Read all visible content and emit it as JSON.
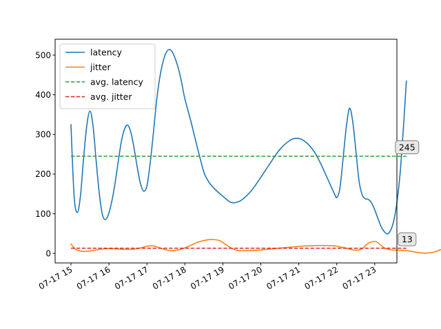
{
  "chart_data": {
    "type": "line",
    "title": "",
    "xlabel": "",
    "ylabel": "",
    "x_ticks": [
      "07-17 15",
      "07-17 16",
      "07-17 17",
      "07-17 18",
      "07-17 19",
      "07-17 20",
      "07-17 21",
      "07-17 22",
      "07-17 23"
    ],
    "y_ticks": [
      0,
      100,
      200,
      300,
      400,
      500
    ],
    "xlim": [
      "07-17 14:35",
      "07-17 23:35"
    ],
    "ylim": [
      -24,
      540
    ],
    "grid": false,
    "legend_position": "top-left",
    "series": [
      {
        "name": "latency",
        "color": "#1f77b4",
        "style": "solid",
        "points": [
          [
            "07-17 15:00",
            325
          ],
          [
            "07-17 15:05",
            145
          ],
          [
            "07-17 15:10",
            103
          ],
          [
            "07-17 15:15",
            145
          ],
          [
            "07-17 15:20",
            240
          ],
          [
            "07-17 15:25",
            322
          ],
          [
            "07-17 15:30",
            359
          ],
          [
            "07-17 15:35",
            320
          ],
          [
            "07-17 15:40",
            230
          ],
          [
            "07-17 15:45",
            148
          ],
          [
            "07-17 15:50",
            96
          ],
          [
            "07-17 15:55",
            86
          ],
          [
            "07-17 16:00",
            102
          ],
          [
            "07-17 16:05",
            135
          ],
          [
            "07-17 16:10",
            180
          ],
          [
            "07-17 16:15",
            235
          ],
          [
            "07-17 16:20",
            285
          ],
          [
            "07-17 16:25",
            315
          ],
          [
            "07-17 16:30",
            323
          ],
          [
            "07-17 16:35",
            303
          ],
          [
            "07-17 16:40",
            263
          ],
          [
            "07-17 16:45",
            215
          ],
          [
            "07-17 16:50",
            175
          ],
          [
            "07-17 16:55",
            157
          ],
          [
            "07-17 17:00",
            170
          ],
          [
            "07-17 17:05",
            225
          ],
          [
            "07-17 17:10",
            300
          ],
          [
            "07-17 17:15",
            380
          ],
          [
            "07-17 17:20",
            440
          ],
          [
            "07-17 17:25",
            480
          ],
          [
            "07-17 17:30",
            505
          ],
          [
            "07-17 17:35",
            514
          ],
          [
            "07-17 17:40",
            508
          ],
          [
            "07-17 17:45",
            490
          ],
          [
            "07-17 17:50",
            465
          ],
          [
            "07-17 17:55",
            430
          ],
          [
            "07-17 18:00",
            390
          ],
          [
            "07-17 18:10",
            330
          ],
          [
            "07-17 18:20",
            265
          ],
          [
            "07-17 18:30",
            205
          ],
          [
            "07-17 18:35",
            188
          ],
          [
            "07-17 18:40",
            175
          ],
          [
            "07-17 18:50",
            158
          ],
          [
            "07-17 19:00",
            144
          ],
          [
            "07-17 19:10",
            131
          ],
          [
            "07-17 19:15",
            128
          ],
          [
            "07-17 19:20",
            128
          ],
          [
            "07-17 19:30",
            135
          ],
          [
            "07-17 19:45",
            158
          ],
          [
            "07-17 20:00",
            192
          ],
          [
            "07-17 20:15",
            228
          ],
          [
            "07-17 20:30",
            262
          ],
          [
            "07-17 20:45",
            284
          ],
          [
            "07-17 20:55",
            290
          ],
          [
            "07-17 21:05",
            287
          ],
          [
            "07-17 21:15",
            275
          ],
          [
            "07-17 21:25",
            255
          ],
          [
            "07-17 21:35",
            225
          ],
          [
            "07-17 21:45",
            190
          ],
          [
            "07-17 21:55",
            155
          ],
          [
            "07-17 22:00",
            141
          ],
          [
            "07-17 22:05",
            165
          ],
          [
            "07-17 22:10",
            240
          ],
          [
            "07-17 22:15",
            318
          ],
          [
            "07-17 22:20",
            366
          ],
          [
            "07-17 22:25",
            335
          ],
          [
            "07-17 22:30",
            262
          ],
          [
            "07-17 22:35",
            185
          ],
          [
            "07-17 22:40",
            148
          ],
          [
            "07-17 22:45",
            138
          ],
          [
            "07-17 22:50",
            136
          ],
          [
            "07-17 22:55",
            127
          ],
          [
            "07-17 23:00",
            110
          ],
          [
            "07-17 23:05",
            88
          ],
          [
            "07-17 23:10",
            68
          ],
          [
            "07-17 23:15",
            55
          ],
          [
            "07-17 23:20",
            49
          ],
          [
            "07-17 23:25",
            58
          ],
          [
            "07-17 23:30",
            82
          ],
          [
            "07-17 23:35",
            128
          ],
          [
            "07-17 23:40",
            200
          ],
          [
            "07-17 23:45",
            310
          ],
          [
            "07-17 23:50",
            435
          ]
        ]
      },
      {
        "name": "jitter",
        "color": "#ff7f0e",
        "style": "solid",
        "points": [
          [
            "07-17 15:00",
            24
          ],
          [
            "07-17 15:05",
            14
          ],
          [
            "07-17 15:10",
            8
          ],
          [
            "07-17 15:20",
            5
          ],
          [
            "07-17 15:30",
            6
          ],
          [
            "07-17 15:45",
            10
          ],
          [
            "07-17 16:00",
            12
          ],
          [
            "07-17 16:15",
            11
          ],
          [
            "07-17 16:30",
            10
          ],
          [
            "07-17 16:45",
            12
          ],
          [
            "07-17 17:00",
            18
          ],
          [
            "07-17 17:10",
            19
          ],
          [
            "07-17 17:20",
            14
          ],
          [
            "07-17 17:30",
            9
          ],
          [
            "07-17 17:40",
            7
          ],
          [
            "07-17 17:50",
            9
          ],
          [
            "07-17 18:00",
            14
          ],
          [
            "07-17 18:10",
            21
          ],
          [
            "07-17 18:20",
            28
          ],
          [
            "07-17 18:35",
            34
          ],
          [
            "07-17 18:45",
            35
          ],
          [
            "07-17 18:55",
            32
          ],
          [
            "07-17 19:05",
            22
          ],
          [
            "07-17 19:15",
            12
          ],
          [
            "07-17 19:25",
            7
          ],
          [
            "07-17 19:40",
            7
          ],
          [
            "07-17 19:55",
            8
          ],
          [
            "07-17 20:15",
            11
          ],
          [
            "07-17 20:35",
            14
          ],
          [
            "07-17 20:55",
            17
          ],
          [
            "07-17 21:15",
            19
          ],
          [
            "07-17 21:35",
            20
          ],
          [
            "07-17 21:55",
            19
          ],
          [
            "07-17 22:10",
            15
          ],
          [
            "07-17 22:20",
            11
          ],
          [
            "07-17 22:30",
            8
          ],
          [
            "07-17 22:40",
            12
          ],
          [
            "07-17 22:50",
            26
          ],
          [
            "07-17 23:00",
            30
          ],
          [
            "07-17 23:05",
            27
          ],
          [
            "07-17 23:15",
            14
          ],
          [
            "07-17 23:25",
            9
          ],
          [
            "07-17 23:40",
            8
          ],
          [
            "07-17 23:55",
            6
          ],
          [
            "07-17 24:05",
            3
          ],
          [
            "07-17 24:15",
            1
          ],
          [
            "07-17 24:25",
            1
          ],
          [
            "07-17 24:35",
            4
          ],
          [
            "07-17 24:45",
            10
          ],
          [
            "07-17 24:50",
            13
          ]
        ]
      },
      {
        "name": "avg. latency",
        "color": "#2ca02c",
        "style": "dashed",
        "points": [
          [
            "07-17 15:00",
            245
          ],
          [
            "07-17 23:50",
            245
          ]
        ]
      },
      {
        "name": "avg. jitter",
        "color": "#d62728",
        "style": "dashed",
        "points": [
          [
            "07-17 15:00",
            13
          ],
          [
            "07-17 23:50",
            13
          ]
        ]
      }
    ],
    "annotations": [
      {
        "text": "245",
        "x": "07-17 23:50",
        "y": 245
      },
      {
        "text": "13",
        "x": "07-17 23:50",
        "y": 13
      }
    ]
  }
}
